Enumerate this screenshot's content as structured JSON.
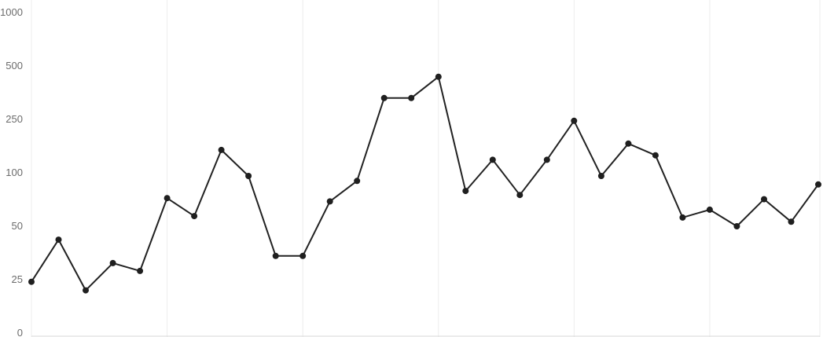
{
  "chart_data": {
    "type": "line",
    "yscale": "symlog",
    "ylim": [
      0,
      1000
    ],
    "y_ticks": [
      0,
      25,
      50,
      100,
      250,
      500,
      1000
    ],
    "y_tick_labels": [
      "0",
      "25",
      "50",
      "100",
      "250",
      "500",
      "1000"
    ],
    "grid": {
      "vertical": true,
      "horizontal": false
    },
    "legend": "none",
    "colors": {
      "line": "#222222",
      "grid": "#ececec",
      "tick_text": "#6b6b6b"
    },
    "series": [
      {
        "values": [
          24,
          42,
          20,
          31,
          28,
          72,
          57,
          148,
          96,
          34,
          34,
          69,
          90,
          330,
          330,
          435,
          79,
          125,
          75,
          125,
          244,
          96,
          165,
          135,
          56,
          62,
          50,
          71,
          53,
          86
        ]
      }
    ]
  }
}
